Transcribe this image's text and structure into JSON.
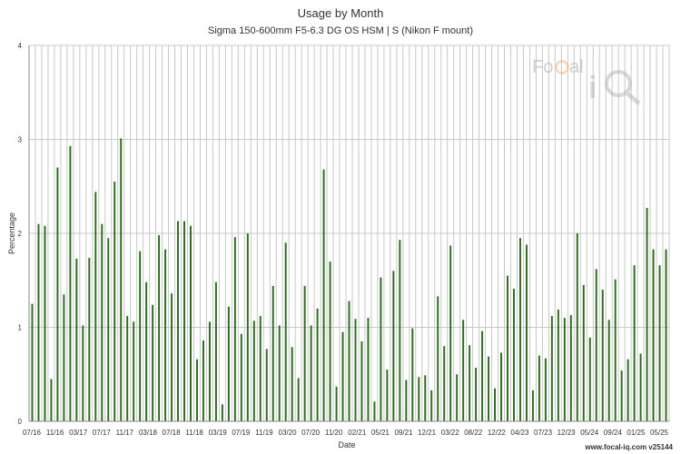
{
  "chart_data": {
    "type": "bar",
    "title": "Usage by Month",
    "subtitle": "Sigma 150-600mm F5-6.3 DG OS HSM | S (Nikon F mount)",
    "xlabel": "Date",
    "ylabel": "Percentage",
    "ylim": [
      0,
      4
    ],
    "yticks": [
      "0",
      "1",
      "2",
      "3",
      "4"
    ],
    "grid": true,
    "bar_color": "#2e6b1f",
    "xtick_labels": [
      "07/16",
      "11/16",
      "03/17",
      "07/17",
      "11/17",
      "03/18",
      "07/18",
      "11/18",
      "03/19",
      "07/19",
      "11/19",
      "03/20",
      "07/20",
      "11/20",
      "02/21",
      "05/21",
      "09/21",
      "12/21",
      "03/22",
      "08/22",
      "12/22",
      "04/23",
      "07/23",
      "12/23",
      "05/24",
      "09/24",
      "01/25",
      "05/25"
    ],
    "values": [
      1.25,
      2.1,
      2.08,
      0.45,
      2.7,
      1.35,
      2.93,
      1.73,
      1.02,
      1.74,
      2.44,
      2.1,
      1.95,
      2.55,
      3.01,
      1.12,
      1.06,
      1.81,
      1.48,
      1.24,
      1.98,
      1.83,
      1.36,
      2.13,
      2.13,
      2.08,
      0.66,
      0.86,
      1.06,
      1.48,
      0.18,
      1.22,
      1.96,
      0.93,
      2.0,
      1.07,
      1.12,
      0.77,
      1.44,
      1.02,
      1.9,
      0.79,
      0.46,
      1.44,
      1.02,
      1.2,
      2.68,
      1.7,
      0.37,
      0.95,
      1.28,
      1.09,
      0.85,
      1.1,
      0.21,
      1.53,
      0.55,
      1.6,
      1.93,
      0.44,
      0.99,
      0.47,
      0.49,
      0.33,
      1.33,
      0.8,
      1.87,
      0.5,
      1.08,
      0.81,
      0.57,
      0.96,
      0.69,
      0.35,
      0.73,
      1.55,
      1.41,
      1.95,
      1.88,
      0.33,
      0.7,
      0.67,
      1.12,
      1.19,
      1.1,
      1.13,
      2.0,
      1.45,
      0.89,
      1.62,
      1.4,
      1.08,
      1.51,
      0.54,
      0.66,
      1.66,
      0.72,
      2.27,
      1.83,
      1.66,
      1.83
    ]
  },
  "logo_text": "FoCal iQ",
  "footer": "www.focal-iq.com  v25144"
}
